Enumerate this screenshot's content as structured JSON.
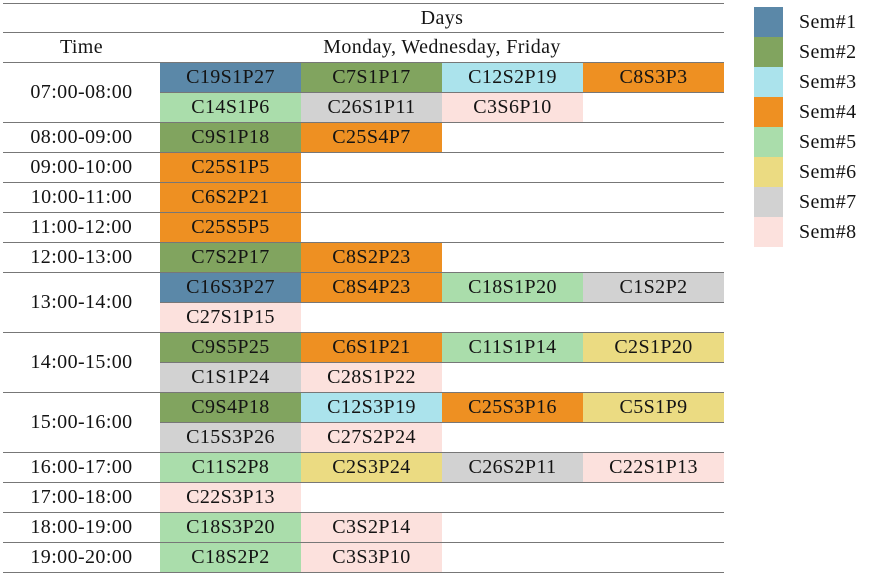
{
  "chart_data": {
    "type": "table",
    "header": {
      "days_label": "Days",
      "time_label": "Time",
      "days_value": "Monday, Wednesday, Friday"
    },
    "legend": {
      "position": "right",
      "entries": [
        {
          "label": "Sem#1",
          "color": "#5b88a8"
        },
        {
          "label": "Sem#2",
          "color": "#81a45f"
        },
        {
          "label": "Sem#3",
          "color": "#abe3ec"
        },
        {
          "label": "Sem#4",
          "color": "#ee9022"
        },
        {
          "label": "Sem#5",
          "color": "#aaddab"
        },
        {
          "label": "Sem#6",
          "color": "#ebdb82"
        },
        {
          "label": "Sem#7",
          "color": "#d2d2d2"
        },
        {
          "label": "Sem#8",
          "color": "#fce1dd"
        }
      ]
    },
    "rows": [
      {
        "time": "07:00-08:00",
        "subrows": [
          [
            {
              "code": "C19S1P27",
              "sem": 1
            },
            {
              "code": "C7S1P17",
              "sem": 2
            },
            {
              "code": "C12S2P19",
              "sem": 3
            },
            {
              "code": "C8S3P3",
              "sem": 4
            }
          ],
          [
            {
              "code": "C14S1P6",
              "sem": 5
            },
            {
              "code": "C26S1P11",
              "sem": 7
            },
            {
              "code": "C3S6P10",
              "sem": 8
            },
            null
          ]
        ]
      },
      {
        "time": "08:00-09:00",
        "subrows": [
          [
            {
              "code": "C9S1P18",
              "sem": 2
            },
            {
              "code": "C25S4P7",
              "sem": 4
            },
            null,
            null
          ]
        ]
      },
      {
        "time": "09:00-10:00",
        "subrows": [
          [
            {
              "code": "C25S1P5",
              "sem": 4
            },
            null,
            null,
            null
          ]
        ]
      },
      {
        "time": "10:00-11:00",
        "subrows": [
          [
            {
              "code": "C6S2P21",
              "sem": 4
            },
            null,
            null,
            null
          ]
        ]
      },
      {
        "time": "11:00-12:00",
        "subrows": [
          [
            {
              "code": "C25S5P5",
              "sem": 4
            },
            null,
            null,
            null
          ]
        ]
      },
      {
        "time": "12:00-13:00",
        "subrows": [
          [
            {
              "code": "C7S2P17",
              "sem": 2
            },
            {
              "code": "C8S2P23",
              "sem": 4
            },
            null,
            null
          ]
        ]
      },
      {
        "time": "13:00-14:00",
        "subrows": [
          [
            {
              "code": "C16S3P27",
              "sem": 1
            },
            {
              "code": "C8S4P23",
              "sem": 4
            },
            {
              "code": "C18S1P20",
              "sem": 5
            },
            {
              "code": "C1S2P2",
              "sem": 7
            }
          ],
          [
            {
              "code": "C27S1P15",
              "sem": 8
            },
            null,
            null,
            null
          ]
        ]
      },
      {
        "time": "14:00-15:00",
        "subrows": [
          [
            {
              "code": "C9S5P25",
              "sem": 2
            },
            {
              "code": "C6S1P21",
              "sem": 4
            },
            {
              "code": "C11S1P14",
              "sem": 5
            },
            {
              "code": "C2S1P20",
              "sem": 6
            }
          ],
          [
            {
              "code": "C1S1P24",
              "sem": 7
            },
            {
              "code": "C28S1P22",
              "sem": 8
            },
            null,
            null
          ]
        ]
      },
      {
        "time": "15:00-16:00",
        "subrows": [
          [
            {
              "code": "C9S4P18",
              "sem": 2
            },
            {
              "code": "C12S3P19",
              "sem": 3
            },
            {
              "code": "C25S3P16",
              "sem": 4
            },
            {
              "code": "C5S1P9",
              "sem": 6
            }
          ],
          [
            {
              "code": "C15S3P26",
              "sem": 7
            },
            {
              "code": "C27S2P24",
              "sem": 8
            },
            null,
            null
          ]
        ]
      },
      {
        "time": "16:00-17:00",
        "subrows": [
          [
            {
              "code": "C11S2P8",
              "sem": 5
            },
            {
              "code": "C2S3P24",
              "sem": 6
            },
            {
              "code": "C26S2P11",
              "sem": 7
            },
            {
              "code": "C22S1P13",
              "sem": 8
            }
          ]
        ]
      },
      {
        "time": "17:00-18:00",
        "subrows": [
          [
            {
              "code": "C22S3P13",
              "sem": 8
            },
            null,
            null,
            null
          ]
        ]
      },
      {
        "time": "18:00-19:00",
        "subrows": [
          [
            {
              "code": "C18S3P20",
              "sem": 5
            },
            {
              "code": "C3S2P14",
              "sem": 8
            },
            null,
            null
          ]
        ]
      },
      {
        "time": "19:00-20:00",
        "subrows": [
          [
            {
              "code": "C18S2P2",
              "sem": 5
            },
            {
              "code": "C3S3P10",
              "sem": 8
            },
            null,
            null
          ]
        ]
      }
    ],
    "colors": {
      "border": "#777777",
      "text": "#141414",
      "background": "#ffffff"
    }
  }
}
